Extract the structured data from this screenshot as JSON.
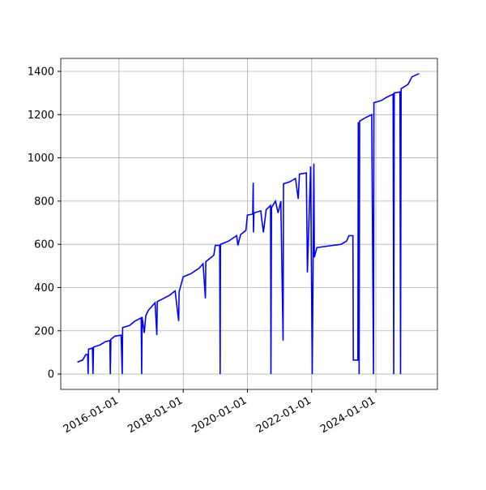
{
  "chart_data": {
    "type": "line",
    "color": "#0000ff",
    "grid": true,
    "x": [
      "2014-09-15",
      "2014-11-15",
      "2014-12-20",
      "2015-01-10",
      "2015-01-15",
      "2015-01-20",
      "2015-03-05",
      "2015-03-12",
      "2015-03-18",
      "2015-06-01",
      "2015-08-01",
      "2015-09-20",
      "2015-09-25",
      "2015-10-01",
      "2015-11-15",
      "2016-01-25",
      "2016-02-07",
      "2016-02-12",
      "2016-05-01",
      "2016-07-01",
      "2016-09-10",
      "2016-09-15",
      "2016-09-20",
      "2016-10-15",
      "2016-11-01",
      "2016-12-01",
      "2017-02-15",
      "2017-03-07",
      "2017-03-12",
      "2017-05-01",
      "2017-08-01",
      "2017-10-01",
      "2017-11-10",
      "2017-11-15",
      "2018-01-01",
      "2018-04-01",
      "2018-07-01",
      "2018-08-15",
      "2018-09-10",
      "2018-09-15",
      "2018-11-01",
      "2018-12-15",
      "2019-01-01",
      "2019-02-20",
      "2019-02-25",
      "2019-03-01",
      "2019-06-01",
      "2019-09-01",
      "2019-09-15",
      "2019-10-15",
      "2019-12-15",
      "2020-01-01",
      "2020-03-01",
      "2020-03-07",
      "2020-03-10",
      "2020-03-15",
      "2020-06-01",
      "2020-07-01",
      "2020-08-01",
      "2020-09-20",
      "2020-09-25",
      "2020-10-01",
      "2020-11-15",
      "2020-12-15",
      "2021-01-15",
      "2021-02-10",
      "2021-02-15",
      "2021-05-01",
      "2021-07-01",
      "2021-08-01",
      "2021-08-15",
      "2021-11-01",
      "2021-11-13",
      "2021-12-20",
      "2022-01-08",
      "2022-01-26",
      "2022-02-01",
      "2022-03-01",
      "2022-06-01",
      "2022-09-01",
      "2022-12-01",
      "2023-02-01",
      "2023-03-01",
      "2023-04-15",
      "2023-04-20",
      "2023-06-10",
      "2023-06-15",
      "2023-06-25",
      "2023-07-01",
      "2023-09-01",
      "2023-11-15",
      "2023-12-05",
      "2023-12-10",
      "2024-03-01",
      "2024-05-01",
      "2024-07-15",
      "2024-07-22",
      "2024-07-28",
      "2024-10-01",
      "2024-10-08",
      "2024-10-14",
      "2025-01-01",
      "2025-02-15",
      "2025-05-07"
    ],
    "values": [
      55,
      65,
      90,
      90,
      0,
      115,
      120,
      0,
      125,
      135,
      150,
      155,
      0,
      160,
      175,
      180,
      0,
      215,
      225,
      245,
      260,
      0,
      265,
      190,
      270,
      295,
      330,
      180,
      335,
      345,
      365,
      385,
      245,
      380,
      450,
      465,
      490,
      510,
      350,
      520,
      535,
      550,
      595,
      595,
      0,
      600,
      615,
      640,
      595,
      645,
      665,
      735,
      740,
      885,
      655,
      745,
      755,
      655,
      760,
      780,
      0,
      770,
      800,
      745,
      800,
      155,
      880,
      890,
      905,
      810,
      925,
      930,
      470,
      960,
      0,
      973,
      540,
      585,
      590,
      595,
      600,
      615,
      640,
      640,
      65,
      65,
      1165,
      0,
      1170,
      1185,
      1200,
      0,
      1255,
      1265,
      1280,
      1295,
      0,
      1300,
      1305,
      0,
      1320,
      1340,
      1375,
      1390
    ],
    "xlim": [
      "2014-03-10",
      "2025-12-01"
    ],
    "xticks": [
      "2016-01-01",
      "2018-01-01",
      "2020-01-01",
      "2022-01-01",
      "2024-01-01"
    ],
    "ylim": [
      -71,
      1460
    ],
    "yticks": [
      0,
      200,
      400,
      600,
      800,
      1000,
      1200,
      1400
    ]
  }
}
